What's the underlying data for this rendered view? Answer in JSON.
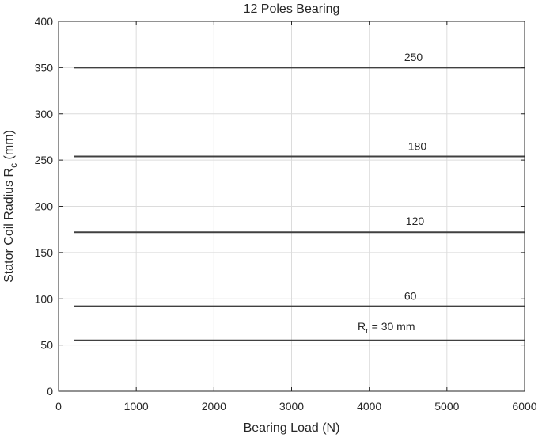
{
  "chart_data": {
    "type": "line",
    "title": "12 Poles Bearing",
    "xlabel": "Bearing Load (N)",
    "ylabel_main": "Stator Coil Radius R",
    "ylabel_sub": "c",
    "ylabel_unit": " (mm)",
    "xlim": [
      0,
      6000
    ],
    "ylim": [
      0,
      400
    ],
    "xticks": [
      0,
      1000,
      2000,
      3000,
      4000,
      5000,
      6000
    ],
    "yticks": [
      0,
      50,
      100,
      150,
      200,
      250,
      300,
      350,
      400
    ],
    "grid": true,
    "series": [
      {
        "label": "250",
        "x": [
          200,
          6000
        ],
        "y": [
          350,
          350
        ],
        "label_at": [
          4450,
          357
        ]
      },
      {
        "label": "180",
        "x": [
          200,
          6000
        ],
        "y": [
          254,
          254
        ],
        "label_at": [
          4500,
          261
        ]
      },
      {
        "label": "120",
        "x": [
          200,
          6000
        ],
        "y": [
          172,
          172
        ],
        "label_at": [
          4470,
          180
        ]
      },
      {
        "label": "60",
        "x": [
          200,
          6000
        ],
        "y": [
          92,
          92
        ],
        "label_at": [
          4450,
          99
        ]
      },
      {
        "label_main": "R",
        "label_sub": "r",
        "label_rest": " = 30 mm",
        "x": [
          200,
          6000
        ],
        "y": [
          55,
          55
        ],
        "label_at": [
          3850,
          66
        ]
      }
    ]
  }
}
